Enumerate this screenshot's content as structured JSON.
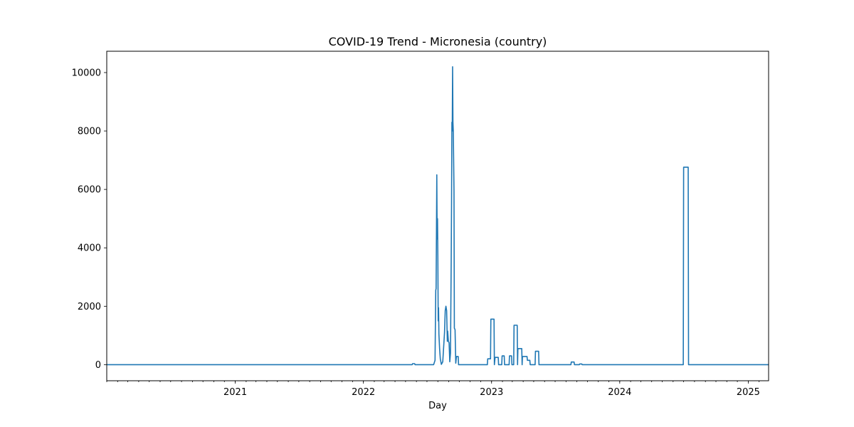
{
  "chart_data": {
    "type": "line",
    "title": "COVID-19 Trend - Micronesia (country)",
    "xlabel": "Day",
    "ylabel": "",
    "xlim": [
      "2020-01-01",
      "2025-02-28"
    ],
    "ylim": [
      -550,
      10730
    ],
    "y_ticks": [
      0,
      2000,
      4000,
      6000,
      8000,
      10000
    ],
    "x_ticks": [
      {
        "date": "2021-01-01",
        "label": "2021"
      },
      {
        "date": "2022-01-01",
        "label": "2022"
      },
      {
        "date": "2023-01-01",
        "label": "2023"
      },
      {
        "date": "2024-01-01",
        "label": "2024"
      },
      {
        "date": "2025-01-01",
        "label": "2025"
      }
    ],
    "grid": false,
    "legend": "none",
    "series": [
      {
        "color": "#1f77b4",
        "points": [
          [
            "2020-01-01",
            0
          ],
          [
            "2022-05-20",
            0
          ],
          [
            "2022-05-21",
            35
          ],
          [
            "2022-05-27",
            35
          ],
          [
            "2022-05-28",
            0
          ],
          [
            "2022-07-20",
            0
          ],
          [
            "2022-07-24",
            150
          ],
          [
            "2022-07-26",
            2550
          ],
          [
            "2022-07-27",
            2600
          ],
          [
            "2022-07-28",
            4400
          ],
          [
            "2022-07-29",
            6500
          ],
          [
            "2022-07-30",
            4300
          ],
          [
            "2022-07-31",
            5000
          ],
          [
            "2022-08-01",
            3700
          ],
          [
            "2022-08-02",
            1500
          ],
          [
            "2022-08-03",
            1950
          ],
          [
            "2022-08-04",
            1050
          ],
          [
            "2022-08-06",
            550
          ],
          [
            "2022-08-08",
            200
          ],
          [
            "2022-08-11",
            10
          ],
          [
            "2022-08-15",
            100
          ],
          [
            "2022-08-18",
            700
          ],
          [
            "2022-08-20",
            1100
          ],
          [
            "2022-08-22",
            1850
          ],
          [
            "2022-08-24",
            2000
          ],
          [
            "2022-08-26",
            1850
          ],
          [
            "2022-08-28",
            800
          ],
          [
            "2022-08-29",
            1150
          ],
          [
            "2022-08-31",
            800
          ],
          [
            "2022-09-02",
            750
          ],
          [
            "2022-09-04",
            100
          ],
          [
            "2022-09-06",
            400
          ],
          [
            "2022-09-08",
            3500
          ],
          [
            "2022-09-09",
            5500
          ],
          [
            "2022-09-10",
            8300
          ],
          [
            "2022-09-11",
            8000
          ],
          [
            "2022-09-12",
            10200
          ],
          [
            "2022-09-13",
            8300
          ],
          [
            "2022-09-14",
            8000
          ],
          [
            "2022-09-16",
            5950
          ],
          [
            "2022-09-17",
            1250
          ],
          [
            "2022-09-19",
            1200
          ],
          [
            "2022-09-21",
            50
          ],
          [
            "2022-09-23",
            280
          ],
          [
            "2022-09-28",
            280
          ],
          [
            "2022-09-29",
            0
          ],
          [
            "2022-12-20",
            0
          ],
          [
            "2022-12-21",
            200
          ],
          [
            "2022-12-29",
            200
          ],
          [
            "2022-12-30",
            1560
          ],
          [
            "2023-01-08",
            1560
          ],
          [
            "2023-01-09",
            0
          ],
          [
            "2023-01-11",
            250
          ],
          [
            "2023-01-20",
            250
          ],
          [
            "2023-01-21",
            0
          ],
          [
            "2023-01-30",
            0
          ],
          [
            "2023-01-31",
            300
          ],
          [
            "2023-02-06",
            300
          ],
          [
            "2023-02-07",
            0
          ],
          [
            "2023-02-20",
            0
          ],
          [
            "2023-02-21",
            300
          ],
          [
            "2023-02-27",
            300
          ],
          [
            "2023-02-28",
            0
          ],
          [
            "2023-03-05",
            0
          ],
          [
            "2023-03-06",
            1350
          ],
          [
            "2023-03-15",
            1350
          ],
          [
            "2023-03-16",
            0
          ],
          [
            "2023-03-17",
            550
          ],
          [
            "2023-03-28",
            550
          ],
          [
            "2023-03-29",
            0
          ],
          [
            "2023-03-30",
            280
          ],
          [
            "2023-04-12",
            280
          ],
          [
            "2023-04-13",
            150
          ],
          [
            "2023-04-20",
            150
          ],
          [
            "2023-04-21",
            0
          ],
          [
            "2023-05-05",
            0
          ],
          [
            "2023-05-06",
            460
          ],
          [
            "2023-05-15",
            460
          ],
          [
            "2023-05-16",
            0
          ],
          [
            "2023-08-15",
            0
          ],
          [
            "2023-08-16",
            90
          ],
          [
            "2023-08-24",
            90
          ],
          [
            "2023-08-25",
            0
          ],
          [
            "2023-09-08",
            0
          ],
          [
            "2023-09-09",
            25
          ],
          [
            "2023-09-15",
            25
          ],
          [
            "2023-09-16",
            0
          ],
          [
            "2024-06-30",
            0
          ],
          [
            "2024-07-01",
            6760
          ],
          [
            "2024-07-14",
            6760
          ],
          [
            "2024-07-15",
            0
          ],
          [
            "2025-02-28",
            0
          ]
        ]
      }
    ]
  }
}
